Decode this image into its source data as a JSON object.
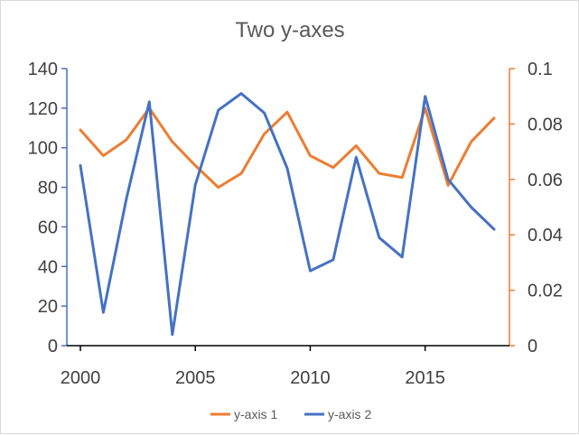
{
  "chart_data": {
    "type": "line",
    "title": "Two y-axes",
    "x_axis": {
      "range": [
        2000,
        2018
      ],
      "ticks": [
        2000,
        2005,
        2010,
        2015
      ],
      "tick_labels": [
        "2000",
        "2005",
        "2010",
        "2015"
      ]
    },
    "y_left": {
      "range": [
        0,
        140
      ],
      "ticks": [
        0,
        20,
        40,
        60,
        80,
        100,
        120,
        140
      ],
      "tick_labels": [
        "0",
        "20",
        "40",
        "60",
        "80",
        "100",
        "120",
        "140"
      ],
      "color": "#4472c4"
    },
    "y_right": {
      "range": [
        0,
        0.1
      ],
      "ticks": [
        0,
        0.02,
        0.04,
        0.06,
        0.08,
        0.1
      ],
      "tick_labels": [
        "0",
        "0.02",
        "0.04",
        "0.06",
        "0.08",
        "0.1"
      ],
      "color": "#ed7d31"
    },
    "x": [
      2000,
      2001,
      2002,
      2003,
      2004,
      2005,
      2006,
      2007,
      2008,
      2009,
      2010,
      2011,
      2012,
      2013,
      2014,
      2015,
      2016,
      2017,
      2018
    ],
    "series": [
      {
        "name": "y-axis 1",
        "axis": "left",
        "color": "#ed7d31",
        "values": [
          109,
          96,
          104,
          120,
          103,
          91,
          80,
          87,
          107,
          118,
          96,
          90,
          101,
          87,
          85,
          120,
          81,
          103,
          115
        ]
      },
      {
        "name": "y-axis 2",
        "axis": "right",
        "color": "#4472c4",
        "values": [
          0.065,
          0.012,
          0.053,
          0.088,
          0.004,
          0.058,
          0.085,
          0.091,
          0.084,
          0.064,
          0.027,
          0.031,
          0.068,
          0.039,
          0.032,
          0.09,
          0.06,
          0.05,
          0.042
        ]
      }
    ],
    "legend": {
      "position": "bottom"
    },
    "grid": false
  }
}
